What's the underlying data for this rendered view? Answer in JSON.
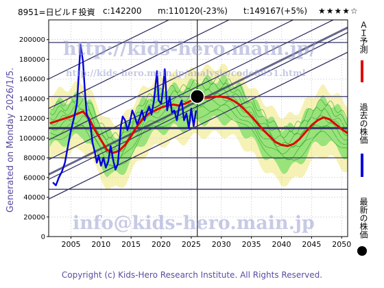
{
  "header": {
    "code": "8951=日ビルＦ投資",
    "current": "c:142200",
    "mean": "m:110120(-23%)",
    "target": "t:149167(+5%)",
    "stars": "★★★★☆"
  },
  "generated": "Generated on Monday 2026/1/5.",
  "footer": "Copyright (c) Kids-Hero Research Institute. All Rights Reserved.",
  "watermarks": {
    "url": "http://kids-hero.main.jp/",
    "analysis": "http://kids-hero.main.jp/analysis/code8951.html",
    "email": "info@kids-hero.main.jp"
  },
  "legend": {
    "ai": "ＡＩ予測",
    "past": "過去の株価",
    "latest": "最新の株価"
  },
  "colors": {
    "ai": "#e00000",
    "past": "#0000dd",
    "latest": "#000000",
    "band_outer": "#f5f0a8",
    "band_inner": "#88e070",
    "band_lines": "#20a020",
    "channel": "#333366"
  },
  "chart_data": {
    "type": "line",
    "xlim": [
      2001.3,
      2051
    ],
    "ylim": [
      0,
      220000
    ],
    "xticks": [
      2005,
      2010,
      2015,
      2020,
      2025,
      2030,
      2035,
      2040,
      2045,
      2050
    ],
    "yticks": [
      0,
      20000,
      40000,
      60000,
      80000,
      100000,
      120000,
      140000,
      160000,
      180000,
      200000
    ],
    "hlines": [
      110120,
      142200,
      197000,
      80000,
      48000
    ],
    "vline": 2026,
    "latest_point": {
      "x": 2026,
      "y": 142200
    },
    "channel_slope_per_year": 3000,
    "channel_offsets_at_2026": [
      -30000,
      -10000,
      10000,
      30000,
      62000,
      92000
    ],
    "series": [
      {
        "name": "ＡＩ予測",
        "x": [
          2001.5,
          2003,
          2005,
          2007,
          2008,
          2009,
          2010,
          2011,
          2012,
          2013,
          2014,
          2015,
          2016,
          2017,
          2018,
          2019,
          2020,
          2021,
          2022,
          2023,
          2024,
          2025,
          2026,
          2027,
          2028,
          2029,
          2030,
          2031,
          2032,
          2033,
          2034,
          2035,
          2036,
          2037,
          2038,
          2039,
          2040,
          2041,
          2042,
          2043,
          2044,
          2045,
          2046,
          2047,
          2048,
          2049,
          2050,
          2051
        ],
        "values": [
          115000,
          118000,
          122000,
          127000,
          120000,
          108000,
          98000,
          88000,
          85000,
          87000,
          93000,
          102000,
          112000,
          120000,
          125000,
          128000,
          131000,
          133000,
          134000,
          133000,
          135000,
          138000,
          140000,
          141000,
          141000,
          142000,
          142000,
          141000,
          138000,
          134000,
          128000,
          122000,
          115000,
          108000,
          102000,
          96000,
          93000,
          92000,
          94000,
          99000,
          106000,
          113000,
          118000,
          121000,
          119000,
          114000,
          109000,
          105000
        ]
      },
      {
        "name": "過去の株価",
        "x": [
          2002,
          2002.5,
          2003,
          2003.5,
          2004,
          2004.5,
          2005,
          2005.5,
          2006,
          2006.3,
          2006.6,
          2007,
          2007.3,
          2007.6,
          2008,
          2008.3,
          2008.6,
          2009,
          2009.3,
          2009.6,
          2010,
          2010.4,
          2010.8,
          2011.2,
          2011.6,
          2012,
          2012.4,
          2012.8,
          2013,
          2013.3,
          2013.6,
          2014,
          2014.4,
          2014.8,
          2015.2,
          2015.6,
          2016,
          2016.4,
          2016.8,
          2017.2,
          2017.6,
          2018,
          2018.4,
          2018.8,
          2019,
          2019.3,
          2019.6,
          2020,
          2020.3,
          2020.6,
          2021,
          2021.4,
          2021.8,
          2022.2,
          2022.6,
          2023,
          2023.4,
          2023.8,
          2024.2,
          2024.6,
          2025,
          2025.4,
          2025.8
        ],
        "values": [
          55000,
          52000,
          60000,
          66000,
          75000,
          92000,
          108000,
          120000,
          135000,
          165000,
          195000,
          178000,
          150000,
          125000,
          118000,
          110000,
          95000,
          85000,
          75000,
          82000,
          72000,
          80000,
          70000,
          76000,
          92000,
          78000,
          68000,
          74000,
          88000,
          112000,
          122000,
          118000,
          108000,
          116000,
          128000,
          122000,
          114000,
          120000,
          128000,
          118000,
          126000,
          132000,
          124000,
          138000,
          150000,
          168000,
          138000,
          135000,
          150000,
          170000,
          128000,
          142000,
          126000,
          128000,
          118000,
          132000,
          138000,
          118000,
          125000,
          110000,
          130000,
          112000,
          128000
        ]
      }
    ]
  }
}
